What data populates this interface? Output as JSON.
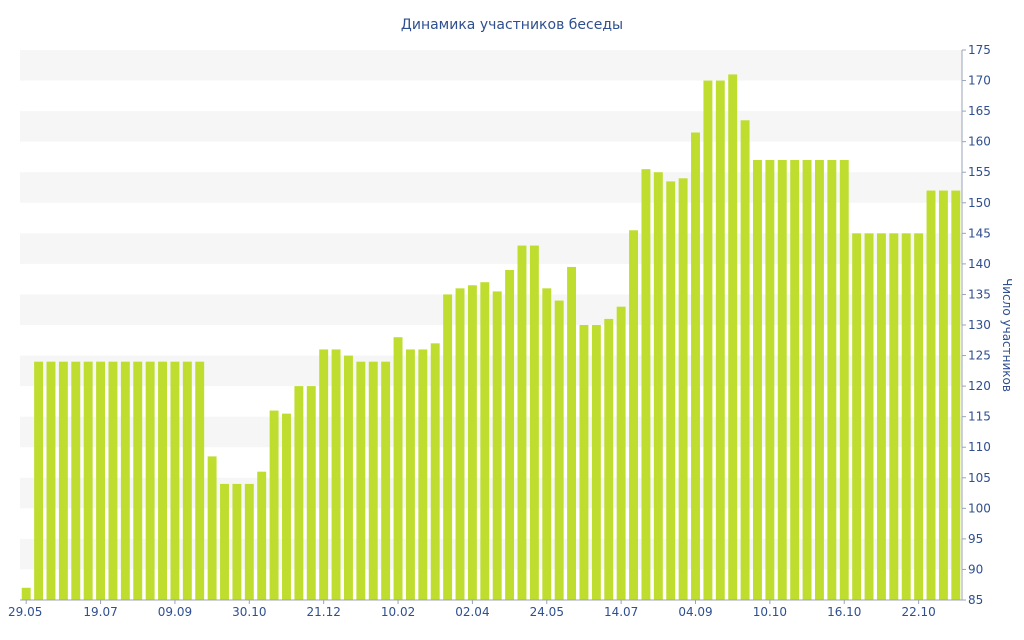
{
  "chart_data": {
    "type": "bar",
    "title": "Динамика участников беседы",
    "ylabel": "Число участников",
    "xlabel": "",
    "ylim": [
      85,
      175
    ],
    "ytick_step": 5,
    "y_axis_side": "right",
    "grid": "horizontal alternating bands",
    "bar_color": "#bedd2f",
    "band_color": "#f6f6f6",
    "text_color": "#2f4f8f",
    "x_tick_labels": [
      {
        "index": 0,
        "label": "29.05"
      },
      {
        "index": 6,
        "label": "19.07"
      },
      {
        "index": 12,
        "label": "09.09"
      },
      {
        "index": 18,
        "label": "30.10"
      },
      {
        "index": 24,
        "label": "21.12"
      },
      {
        "index": 30,
        "label": "10.02"
      },
      {
        "index": 36,
        "label": "02.04"
      },
      {
        "index": 42,
        "label": "24.05"
      },
      {
        "index": 48,
        "label": "14.07"
      },
      {
        "index": 54,
        "label": "04.09"
      },
      {
        "index": 60,
        "label": "10.10"
      },
      {
        "index": 66,
        "label": "16.10"
      },
      {
        "index": 72,
        "label": "22.10"
      }
    ],
    "values": [
      87,
      124,
      124,
      124,
      124,
      124,
      124,
      124,
      124,
      124,
      124,
      124,
      124,
      124,
      124,
      108.5,
      104,
      104,
      104,
      106,
      116,
      115.5,
      120,
      120,
      126,
      126,
      125,
      124,
      124,
      124,
      128,
      126,
      126,
      127,
      135,
      136,
      136.5,
      137,
      135.5,
      139,
      143,
      143,
      136,
      134,
      139.5,
      130,
      130,
      131,
      133,
      145.5,
      155.5,
      155,
      153.5,
      154,
      161.5,
      170,
      170,
      171,
      163.5,
      157,
      157,
      157,
      157,
      157,
      157,
      157,
      157,
      145,
      145,
      145,
      145,
      145,
      145,
      152,
      152,
      152
    ]
  }
}
